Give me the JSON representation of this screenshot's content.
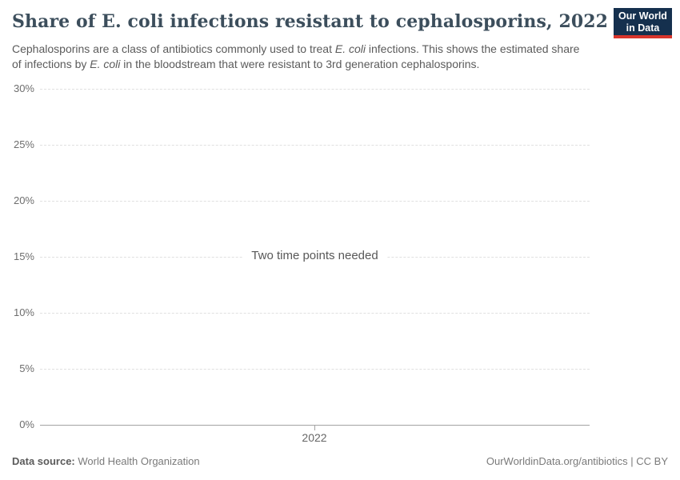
{
  "header": {
    "title": "Share of E. coli infections resistant to cephalosporins, 2022",
    "logo_line1": "Our World",
    "logo_line2": "in Data",
    "subtitle": {
      "p1": "Cephalosporins are a class of antibiotics commonly used to treat ",
      "e1": "E. coli",
      "p2": " infections. This shows the estimated share of infections by ",
      "e2": "E. coli",
      "p3": " in the bloodstream that were resistant to 3rd generation cephalosporins."
    }
  },
  "chart_data": {
    "type": "line",
    "title": "Share of E. coli infections resistant to cephalosporins, 2022",
    "xlabel": "",
    "ylabel": "",
    "x_ticks": [
      "2022"
    ],
    "y_ticks": [
      "0%",
      "5%",
      "10%",
      "15%",
      "20%",
      "25%",
      "30%"
    ],
    "ylim": [
      0,
      30
    ],
    "grid": "horizontal-dashed",
    "legend": "none",
    "series": [],
    "note": "Two time points needed"
  },
  "axis": {
    "y30": "30%",
    "y25": "25%",
    "y20": "20%",
    "y15": "15%",
    "y10": "10%",
    "y5": "5%",
    "y0": "0%",
    "x2022": "2022"
  },
  "message": "Two time points needed",
  "footer": {
    "source_label": "Data source:",
    "source_value": " World Health Organization",
    "attribution": "OurWorldinData.org/antibiotics | CC BY"
  },
  "colors": {
    "title": "#3c4e5c",
    "subtitle": "#5b5b5b",
    "gridline": "#e0e0e0",
    "axis": "#a3a3a3",
    "logo_navy": "#15304e",
    "logo_red": "#d8352c"
  }
}
